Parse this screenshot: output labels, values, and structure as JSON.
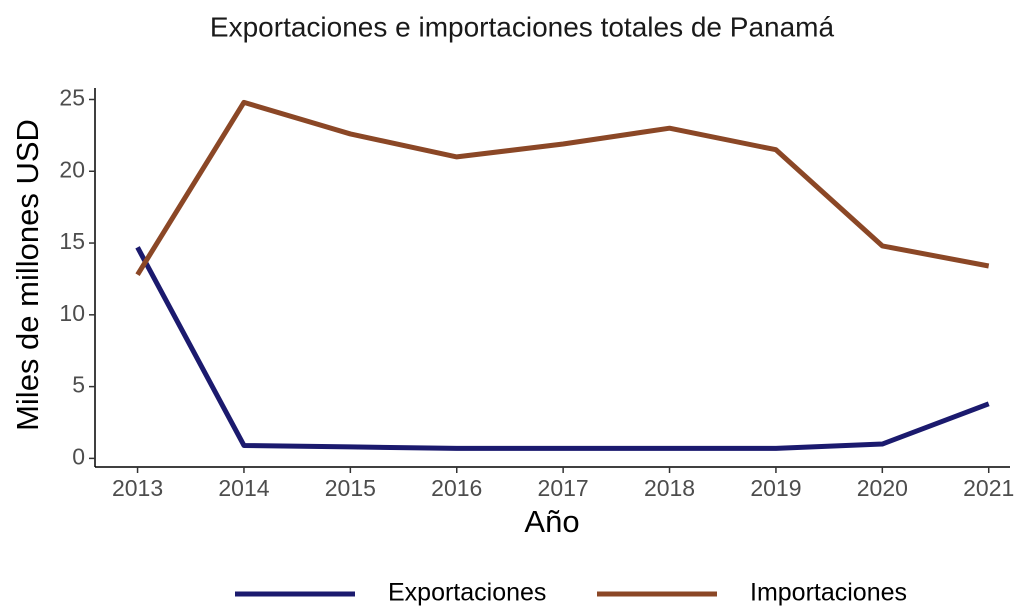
{
  "chart_data": {
    "type": "line",
    "title": "Exportaciones e importaciones totales de Panamá",
    "x_label": "Año",
    "y_label": "Miles de millones USD",
    "x": [
      2013,
      2014,
      2015,
      2016,
      2017,
      2018,
      2019,
      2020,
      2021
    ],
    "series": [
      {
        "name": "Exportaciones",
        "color": "#1b1a6e",
        "values": [
          14.7,
          0.9,
          0.8,
          0.7,
          0.7,
          0.7,
          0.7,
          1.0,
          3.8
        ]
      },
      {
        "name": "Importaciones",
        "color": "#8b4726",
        "values": [
          12.8,
          24.8,
          22.6,
          21.0,
          21.9,
          23.0,
          21.5,
          14.8,
          13.4
        ]
      }
    ],
    "xlim": [
      2012.6,
      2021.2
    ],
    "xticks": [
      2013,
      2014,
      2015,
      2016,
      2017,
      2018,
      2019,
      2020,
      2021
    ],
    "ylim": [
      -0.6,
      25.8
    ],
    "yticks": [
      0,
      5,
      10,
      15,
      20,
      25
    ],
    "grid": false,
    "legend": "bottom"
  }
}
